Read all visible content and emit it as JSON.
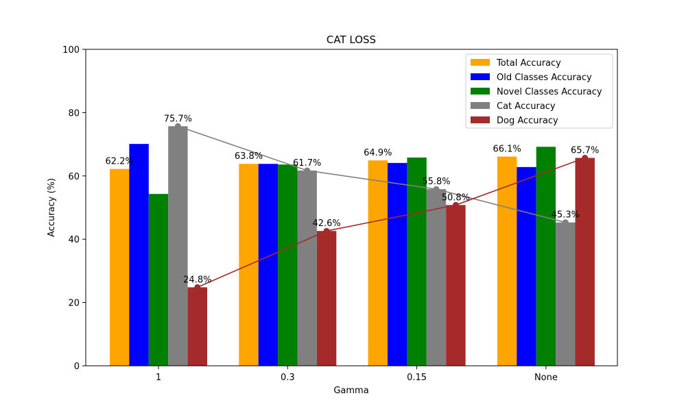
{
  "chart_data": {
    "type": "bar",
    "title": "CAT LOSS",
    "xlabel": "Gamma",
    "ylabel": "Accuracy (%)",
    "categories": [
      "1",
      "0.3",
      "0.15",
      "None"
    ],
    "ylim": [
      0,
      100
    ],
    "yticks": [
      0,
      20,
      40,
      60,
      80,
      100
    ],
    "grid": false,
    "legend_position": "top-right",
    "series": [
      {
        "name": "Total Accuracy",
        "color": "#ffa500",
        "values": [
          62.2,
          63.8,
          64.9,
          66.1
        ],
        "labels": [
          "62.2%",
          "63.8%",
          "64.9%",
          "66.1%"
        ]
      },
      {
        "name": "Old Classes Accuracy",
        "color": "#0000ff",
        "values": [
          70.1,
          63.8,
          64.1,
          62.8
        ]
      },
      {
        "name": "Novel Classes Accuracy",
        "color": "#008000",
        "values": [
          54.3,
          63.6,
          65.8,
          69.2
        ]
      },
      {
        "name": "Cat Accuracy",
        "color": "#808080",
        "values": [
          75.7,
          61.7,
          55.8,
          45.3
        ],
        "labels": [
          "75.7%",
          "61.7%",
          "55.8%",
          "45.3%"
        ]
      },
      {
        "name": "Dog Accuracy",
        "color": "#a52a2a",
        "values": [
          24.8,
          42.6,
          50.8,
          65.7
        ],
        "labels": [
          "24.8%",
          "42.6%",
          "50.8%",
          "65.7%"
        ]
      }
    ],
    "lines": [
      {
        "series": "Cat Accuracy",
        "color": "#808080"
      },
      {
        "series": "Dog Accuracy",
        "color": "#a52a2a"
      }
    ]
  }
}
